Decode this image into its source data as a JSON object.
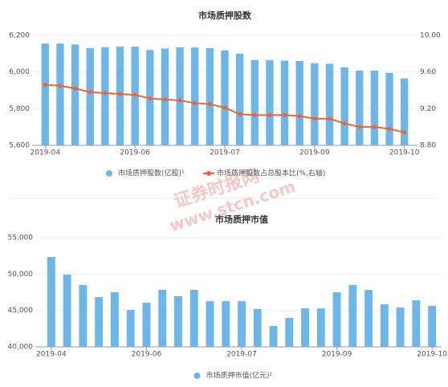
{
  "chart_data": [
    {
      "type": "bar-line",
      "title": "市场质押股数",
      "categories": [
        "2019-04",
        null,
        null,
        null,
        null,
        null,
        "2019-06",
        null,
        null,
        null,
        null,
        null,
        "2019-07",
        null,
        null,
        null,
        null,
        null,
        "2019-09",
        null,
        null,
        null,
        null,
        null,
        "2019-10"
      ],
      "series": [
        {
          "name": "市场质押股数(亿股)¹",
          "type": "bar",
          "color": "#6cb6ea",
          "values": [
            6155,
            6155,
            6150,
            6130,
            6135,
            6138,
            6138,
            6120,
            6128,
            6135,
            6133,
            6130,
            6118,
            6100,
            6065,
            6065,
            6062,
            6060,
            6048,
            6045,
            6025,
            6008,
            6008,
            5995,
            5965
          ]
        },
        {
          "name": "市场质押股数占总股本比(%,右轴)",
          "type": "line",
          "axis": "y2",
          "color": "#f0652f",
          "values": [
            9.46,
            9.45,
            9.42,
            9.38,
            9.37,
            9.36,
            9.35,
            9.31,
            9.3,
            9.29,
            9.26,
            9.25,
            9.21,
            9.14,
            9.13,
            9.13,
            9.13,
            9.12,
            9.09,
            9.09,
            9.04,
            9.0,
            9.0,
            8.98,
            8.94
          ]
        }
      ],
      "ylim": [
        5600,
        6200
      ],
      "yticks": [
        {
          "value": 5600,
          "label": "5,600"
        },
        {
          "value": 5800,
          "label": "5,800"
        },
        {
          "value": 6000,
          "label": "6,000"
        },
        {
          "value": 6200,
          "label": "6,200"
        }
      ],
      "y2lim": [
        8.8,
        10.0
      ],
      "y2ticks": [
        {
          "value": 8.8,
          "label": "8.80"
        },
        {
          "value": 9.2,
          "label": "9.20"
        },
        {
          "value": 9.6,
          "label": "9.60"
        },
        {
          "value": 10.0,
          "label": "10.00"
        }
      ]
    },
    {
      "type": "bar",
      "title": "市场质押市值",
      "categories": [
        "2019-04",
        null,
        null,
        null,
        null,
        null,
        "2019-06",
        null,
        null,
        null,
        null,
        null,
        "2019-07",
        null,
        null,
        null,
        null,
        null,
        "2019-09",
        null,
        null,
        null,
        null,
        null,
        "2019-10"
      ],
      "series": [
        {
          "name": "市场质押市值(亿元)²",
          "type": "bar",
          "color": "#6cb6ea",
          "values": [
            52350,
            49930,
            48500,
            46840,
            47500,
            45070,
            46060,
            47830,
            46950,
            47830,
            46280,
            46280,
            46280,
            45180,
            42870,
            43970,
            45290,
            45290,
            47500,
            48500,
            47830,
            45840,
            45400,
            46400,
            45620
          ]
        }
      ],
      "ylim": [
        40000,
        55000
      ],
      "yticks": [
        {
          "value": 40000,
          "label": "40,000"
        },
        {
          "value": 45000,
          "label": "45,000"
        },
        {
          "value": 50000,
          "label": "50,000"
        },
        {
          "value": 55000,
          "label": "55,000"
        }
      ]
    }
  ],
  "watermark": [
    "证券时报网",
    "www.stcn.com"
  ]
}
